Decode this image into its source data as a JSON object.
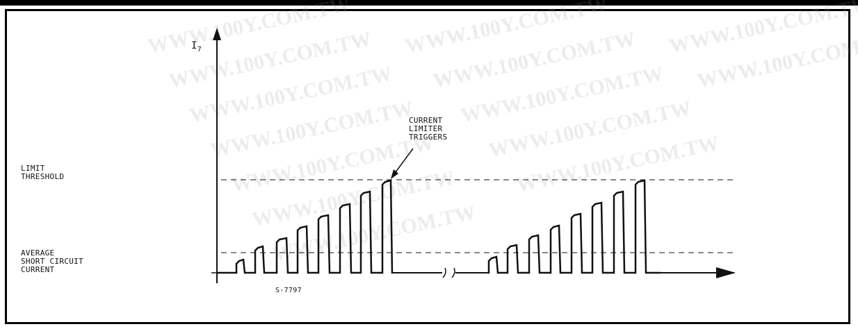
{
  "axis": {
    "y_label": "I",
    "y_label_sub": "7"
  },
  "labels": {
    "limit_threshold": "LIMIT\nTHRESHOLD",
    "average_current": "AVERAGE\nSHORT CIRCUIT\nCURRENT",
    "annotation": "CURRENT\nLIMITER\nTRIGGERS",
    "figure_code": "S-7797"
  },
  "watermark": "WWW.100Y.COM.TW",
  "colors": {
    "ink": "#111111",
    "border": "#000000",
    "watermark": "#969696"
  }
}
